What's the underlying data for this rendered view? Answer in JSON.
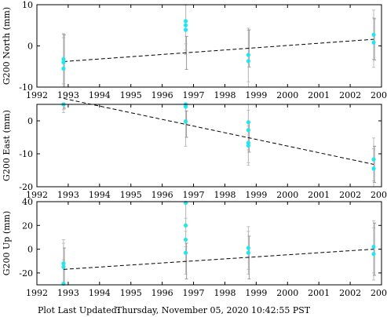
{
  "footer": {
    "label": "Plot Last Updated:",
    "timestamp": "Thursday, November 05, 2020 10:42:55 PST"
  },
  "colors": {
    "points": "#22e6ee",
    "error_bars": "#bdbdbd",
    "trend_line": "#000000",
    "axes": "#000000"
  },
  "chart_data": [
    {
      "type": "scatter",
      "ylabel": "G200 North (mm)",
      "xlim": [
        1992,
        2003
      ],
      "ylim": [
        -10,
        10
      ],
      "xticks": [
        1992,
        1993,
        1994,
        1995,
        1996,
        1997,
        1998,
        1999,
        2000,
        2001,
        2002,
        2003
      ],
      "yticks": [
        -10,
        0,
        10
      ],
      "show_x_tick_labels": true,
      "points": [
        {
          "x": 1992.85,
          "y": -5.5,
          "err": 7.5
        },
        {
          "x": 1992.85,
          "y": -4.0,
          "err": 7.0
        },
        {
          "x": 1992.85,
          "y": -3.2,
          "err": 6.0
        },
        {
          "x": 1996.75,
          "y": 3.9,
          "err": 6.0
        },
        {
          "x": 1996.75,
          "y": 5.0,
          "err": 6.0
        },
        {
          "x": 1996.75,
          "y": 6.0,
          "err": 5.5
        },
        {
          "x": 1998.75,
          "y": -3.7,
          "err": 7.5
        },
        {
          "x": 1998.75,
          "y": -2.2,
          "err": 6.5
        },
        {
          "x": 2002.75,
          "y": 0.8,
          "err": 6.0
        },
        {
          "x": 2002.75,
          "y": 2.7,
          "err": 6.0
        }
      ],
      "trend": {
        "x": [
          1992.85,
          2002.75
        ],
        "y": [
          -3.8,
          1.6
        ]
      },
      "trend_errors": [
        {
          "x": 1992.85,
          "y": -3.8,
          "err": 6.5
        },
        {
          "x": 1996.75,
          "y": -1.7,
          "err": 4.0
        },
        {
          "x": 1998.75,
          "y": -0.6,
          "err": 4.5
        },
        {
          "x": 2002.75,
          "y": 1.6,
          "err": 5.0
        }
      ]
    },
    {
      "type": "scatter",
      "ylabel": "G200 East (mm)",
      "xlim": [
        1992,
        2003
      ],
      "ylim": [
        -20,
        5
      ],
      "xticks": [
        1992,
        1993,
        1994,
        1995,
        1996,
        1997,
        1998,
        1999,
        2000,
        2001,
        2002,
        2003
      ],
      "yticks": [
        -20,
        -10,
        0
      ],
      "show_x_tick_labels": true,
      "points": [
        {
          "x": 1992.85,
          "y": 6.0,
          "err": 3.5
        },
        {
          "x": 1992.85,
          "y": 7.0,
          "err": 3.5
        },
        {
          "x": 1996.75,
          "y": 4.3,
          "err": 5.0
        },
        {
          "x": 1996.75,
          "y": 5.3,
          "err": 5.0
        },
        {
          "x": 1996.75,
          "y": -0.2,
          "err": 7.5
        },
        {
          "x": 1998.75,
          "y": -0.4,
          "err": 6.5
        },
        {
          "x": 1998.75,
          "y": -2.8,
          "err": 6.0
        },
        {
          "x": 1998.75,
          "y": -6.7,
          "err": 6.0
        },
        {
          "x": 1998.75,
          "y": -7.5,
          "err": 6.0
        },
        {
          "x": 2002.75,
          "y": -11.7,
          "err": 6.5
        },
        {
          "x": 2002.75,
          "y": -14.5,
          "err": 6.0
        }
      ],
      "trend": {
        "x": [
          1992.85,
          2002.75
        ],
        "y": [
          6.8,
          -13.2
        ]
      },
      "trend_errors": [
        {
          "x": 1992.85,
          "y": 6.8,
          "err": 3.0
        },
        {
          "x": 1996.75,
          "y": -1.0,
          "err": 4.0
        },
        {
          "x": 1998.75,
          "y": -5.0,
          "err": 4.5
        },
        {
          "x": 2002.75,
          "y": -13.2,
          "err": 5.5
        }
      ]
    },
    {
      "type": "scatter",
      "ylabel": "G200 Up (mm)",
      "xlim": [
        1992,
        2003
      ],
      "ylim": [
        -30,
        40
      ],
      "xticks": [
        1992,
        1993,
        1994,
        1995,
        1996,
        1997,
        1998,
        1999,
        2000,
        2001,
        2002,
        2003
      ],
      "yticks": [
        -20,
        0,
        20,
        40
      ],
      "show_x_tick_labels": true,
      "points": [
        {
          "x": 1992.85,
          "y": -12.0,
          "err": 20.0
        },
        {
          "x": 1992.85,
          "y": -15.0,
          "err": 20.0
        },
        {
          "x": 1992.85,
          "y": -29.0,
          "err": 20.0
        },
        {
          "x": 1996.75,
          "y": 39.0,
          "err": 20.0
        },
        {
          "x": 1996.75,
          "y": 20.0,
          "err": 18.0
        },
        {
          "x": 1996.75,
          "y": 8.0,
          "err": 18.0
        },
        {
          "x": 1996.75,
          "y": -3.0,
          "err": 18.0
        },
        {
          "x": 1998.75,
          "y": 1.0,
          "err": 18.0
        },
        {
          "x": 1998.75,
          "y": -3.0,
          "err": 18.0
        },
        {
          "x": 2002.75,
          "y": 2.0,
          "err": 22.0
        },
        {
          "x": 2002.75,
          "y": -4.0,
          "err": 22.0
        }
      ],
      "trend": {
        "x": [
          1992.85,
          2002.75
        ],
        "y": [
          -17.0,
          0.0
        ]
      },
      "trend_errors": [
        {
          "x": 1992.85,
          "y": -17.0,
          "err": 18.0
        },
        {
          "x": 1996.75,
          "y": -10.0,
          "err": 15.0
        },
        {
          "x": 1998.75,
          "y": -7.0,
          "err": 18.0
        },
        {
          "x": 2002.75,
          "y": 0.0,
          "err": 22.0
        }
      ]
    }
  ]
}
